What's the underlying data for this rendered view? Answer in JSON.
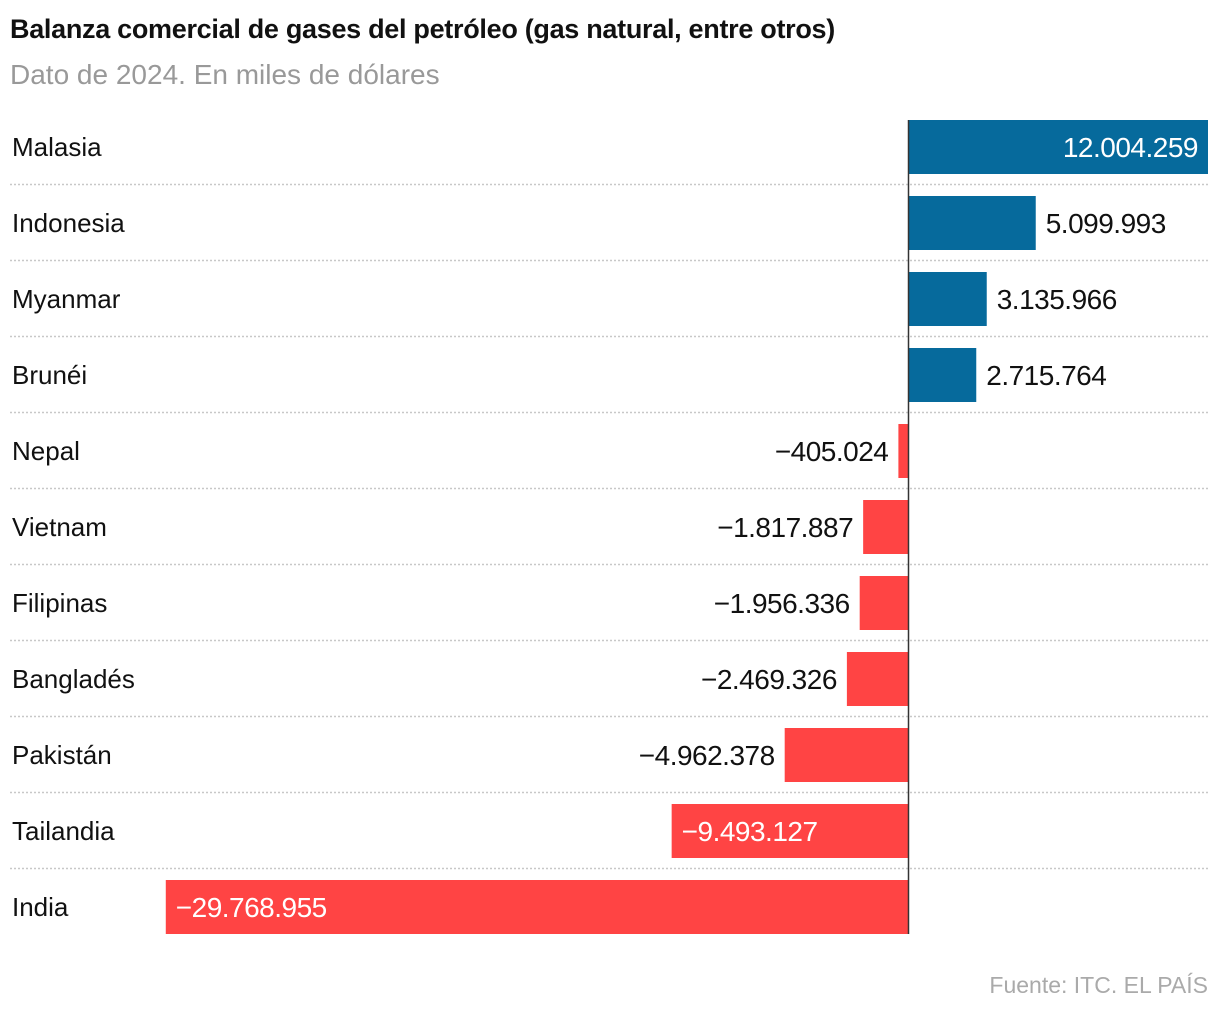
{
  "chart_data": {
    "type": "bar",
    "orientation": "horizontal",
    "title": "Balanza comercial de gases del petróleo (gas natural, entre otros)",
    "subtitle": "Dato de 2024. En miles de dólares",
    "source": "Fuente: ITC. EL PAÍS",
    "categories": [
      "Malasia",
      "Indonesia",
      "Myanmar",
      "Brunéi",
      "Nepal",
      "Vietnam",
      "Filipinas",
      "Bangladés",
      "Pakistán",
      "Tailandia",
      "India"
    ],
    "values": [
      12004259,
      5099993,
      3135966,
      2715764,
      -405024,
      -1817887,
      -1956336,
      -2469326,
      -4962378,
      -9493127,
      -29768955
    ],
    "positive_color": "#066a9c",
    "negative_color": "#ff4444",
    "grid": false
  }
}
